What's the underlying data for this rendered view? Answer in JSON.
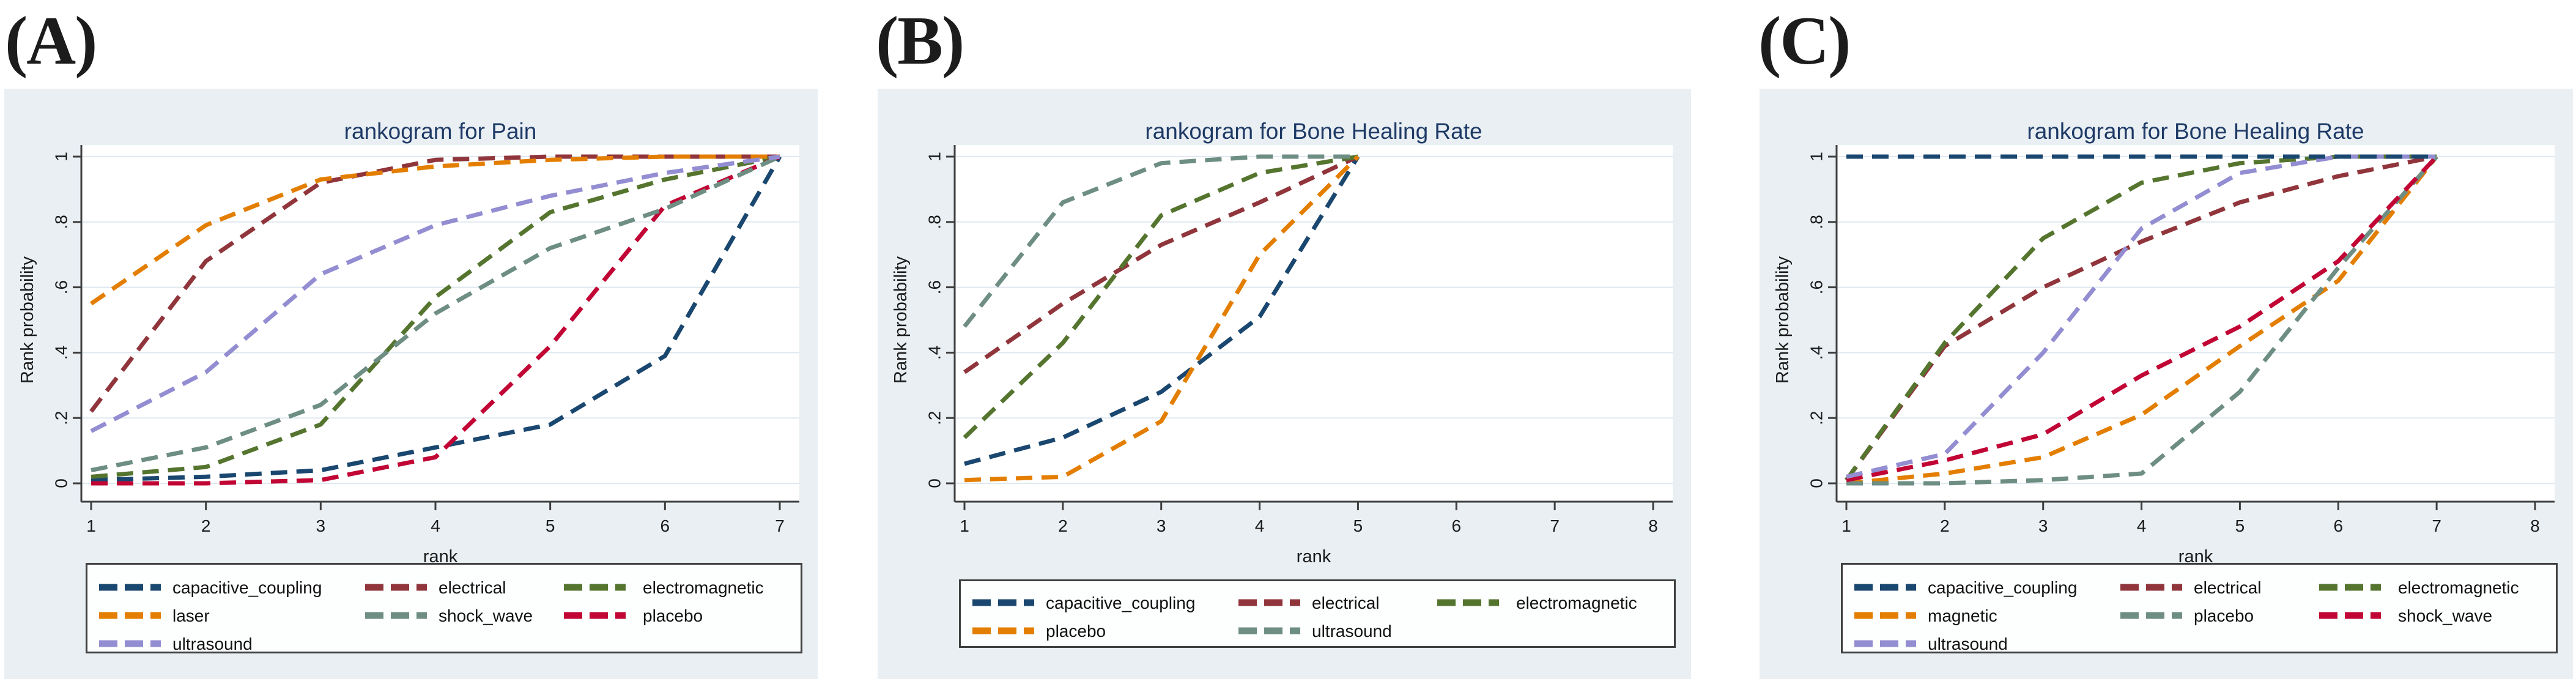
{
  "figure": {
    "style": {
      "panel_background": "#e9eff3",
      "plot_background": "#ffffff",
      "grid_color": "#dfe8ee",
      "axis_color": "#3f3f3f",
      "tick_text_color": "#1a1a1a",
      "title_text_color": "#1e3a66",
      "legend_border_color": "#3f3f3f"
    },
    "series_colors": {
      "capacitive_coupling": "#1a476f",
      "electrical": "#90353b",
      "electromagnetic": "#55752f",
      "laser": "#e37e00",
      "magnetic": "#e37e00",
      "shock_wave_teal": "#6e8e84",
      "placebo_red": "#c10534",
      "ultrasound_lavender": "#938dd2"
    }
  },
  "chart_data": [
    {
      "type": "line",
      "panel_label": "(A)",
      "title": "rankogram for Pain",
      "xlabel": "rank",
      "ylabel": "Rank probability",
      "xlim": [
        1,
        7
      ],
      "ylim": [
        0,
        1
      ],
      "grid": true,
      "line_style": "dashed",
      "legend_position": "below",
      "xtick_labels": [
        "1",
        "2",
        "3",
        "4",
        "5",
        "6",
        "7"
      ],
      "ytick_labels": [
        "0",
        ".2",
        ".4",
        ".6",
        ".8",
        "1"
      ],
      "ytick_values": [
        0,
        0.2,
        0.4,
        0.6,
        0.8,
        1
      ],
      "x": [
        1,
        2,
        3,
        4,
        5,
        6,
        7
      ],
      "series": [
        {
          "name": "capacitive_coupling",
          "color": "#1a476f",
          "values": [
            0.01,
            0.02,
            0.04,
            0.11,
            0.18,
            0.39,
            1
          ]
        },
        {
          "name": "electrical",
          "color": "#90353b",
          "values": [
            0.22,
            0.68,
            0.92,
            0.99,
            1,
            1,
            1
          ]
        },
        {
          "name": "electromagnetic",
          "color": "#55752f",
          "values": [
            0.02,
            0.05,
            0.18,
            0.57,
            0.83,
            0.93,
            1
          ]
        },
        {
          "name": "laser",
          "color": "#e37e00",
          "values": [
            0.55,
            0.79,
            0.93,
            0.97,
            0.99,
            1,
            1
          ]
        },
        {
          "name": "placebo",
          "color": "#c10534",
          "values": [
            0,
            0,
            0.01,
            0.08,
            0.42,
            0.85,
            1
          ]
        },
        {
          "name": "shock_wave",
          "color": "#6e8e84",
          "values": [
            0.04,
            0.11,
            0.24,
            0.52,
            0.72,
            0.84,
            1
          ]
        },
        {
          "name": "ultrasound",
          "color": "#938dd2",
          "values": [
            0.16,
            0.34,
            0.64,
            0.79,
            0.88,
            0.95,
            1
          ]
        }
      ],
      "legend_rows": [
        [
          "capacitive_coupling",
          "electrical",
          "electromagnetic"
        ],
        [
          "laser",
          "shock_wave",
          "placebo"
        ],
        [
          "ultrasound"
        ]
      ]
    },
    {
      "type": "line",
      "panel_label": "(B)",
      "title": "rankogram for Bone Healing Rate",
      "xlabel": "rank",
      "ylabel": "Rank probability",
      "xlim": [
        1,
        8
      ],
      "ylim": [
        0,
        1
      ],
      "grid": true,
      "line_style": "dashed",
      "legend_position": "below",
      "xtick_labels": [
        "1",
        "2",
        "3",
        "4",
        "5",
        "6",
        "7",
        "8"
      ],
      "ytick_labels": [
        "0",
        ".2",
        ".4",
        ".6",
        ".8",
        "1"
      ],
      "ytick_values": [
        0,
        0.2,
        0.4,
        0.6,
        0.8,
        1
      ],
      "x": [
        1,
        2,
        3,
        4,
        5
      ],
      "series": [
        {
          "name": "capacitive_coupling",
          "color": "#1a476f",
          "values": [
            0.06,
            0.14,
            0.28,
            0.51,
            1
          ]
        },
        {
          "name": "electrical",
          "color": "#90353b",
          "values": [
            0.34,
            0.55,
            0.73,
            0.86,
            1
          ]
        },
        {
          "name": "electromagnetic",
          "color": "#55752f",
          "values": [
            0.14,
            0.43,
            0.82,
            0.95,
            1
          ]
        },
        {
          "name": "placebo",
          "color": "#e37e00",
          "values": [
            0.01,
            0.02,
            0.19,
            0.7,
            1
          ]
        },
        {
          "name": "ultrasound",
          "color": "#6e8e84",
          "values": [
            0.48,
            0.86,
            0.98,
            1,
            1
          ]
        }
      ],
      "legend_rows": [
        [
          "capacitive_coupling",
          "electrical",
          "electromagnetic"
        ],
        [
          "placebo",
          "ultrasound"
        ]
      ]
    },
    {
      "type": "line",
      "panel_label": "(C)",
      "title": "rankogram for Bone Healing Rate",
      "xlabel": "rank",
      "ylabel": "Rank probability",
      "xlim": [
        1,
        8
      ],
      "ylim": [
        0,
        1
      ],
      "grid": true,
      "line_style": "dashed",
      "legend_position": "below",
      "xtick_labels": [
        "1",
        "2",
        "3",
        "4",
        "5",
        "6",
        "7",
        "8"
      ],
      "ytick_labels": [
        "0",
        ".2",
        ".4",
        ".6",
        ".8",
        "1"
      ],
      "ytick_values": [
        0,
        0.2,
        0.4,
        0.6,
        0.8,
        1
      ],
      "x": [
        1,
        2,
        3,
        4,
        5,
        6,
        7
      ],
      "series": [
        {
          "name": "electrical",
          "color": "#90353b",
          "values": [
            0.01,
            0.42,
            0.6,
            0.74,
            0.86,
            0.94,
            1
          ]
        },
        {
          "name": "electromagnetic",
          "color": "#55752f",
          "values": [
            0.01,
            0.43,
            0.75,
            0.92,
            0.98,
            1,
            1
          ]
        },
        {
          "name": "magnetic",
          "color": "#e37e00",
          "values": [
            0,
            0.03,
            0.08,
            0.21,
            0.42,
            0.62,
            1
          ]
        },
        {
          "name": "placebo",
          "color": "#6e8e84",
          "values": [
            0,
            0,
            0.01,
            0.03,
            0.28,
            0.66,
            1
          ]
        },
        {
          "name": "shock_wave",
          "color": "#c10534",
          "values": [
            0.01,
            0.07,
            0.15,
            0.33,
            0.48,
            0.68,
            1
          ]
        },
        {
          "name": "ultrasound",
          "color": "#938dd2",
          "values": [
            0.02,
            0.09,
            0.4,
            0.78,
            0.95,
            1,
            1
          ]
        },
        {
          "name": "capacitive_coupling",
          "color": "#1a476f",
          "values": [
            1,
            1,
            1,
            1,
            1,
            1,
            1
          ]
        }
      ],
      "legend_rows": [
        [
          "capacitive_coupling",
          "electrical",
          "electromagnetic"
        ],
        [
          "magnetic",
          "placebo",
          "shock_wave"
        ],
        [
          "ultrasound"
        ]
      ]
    }
  ]
}
